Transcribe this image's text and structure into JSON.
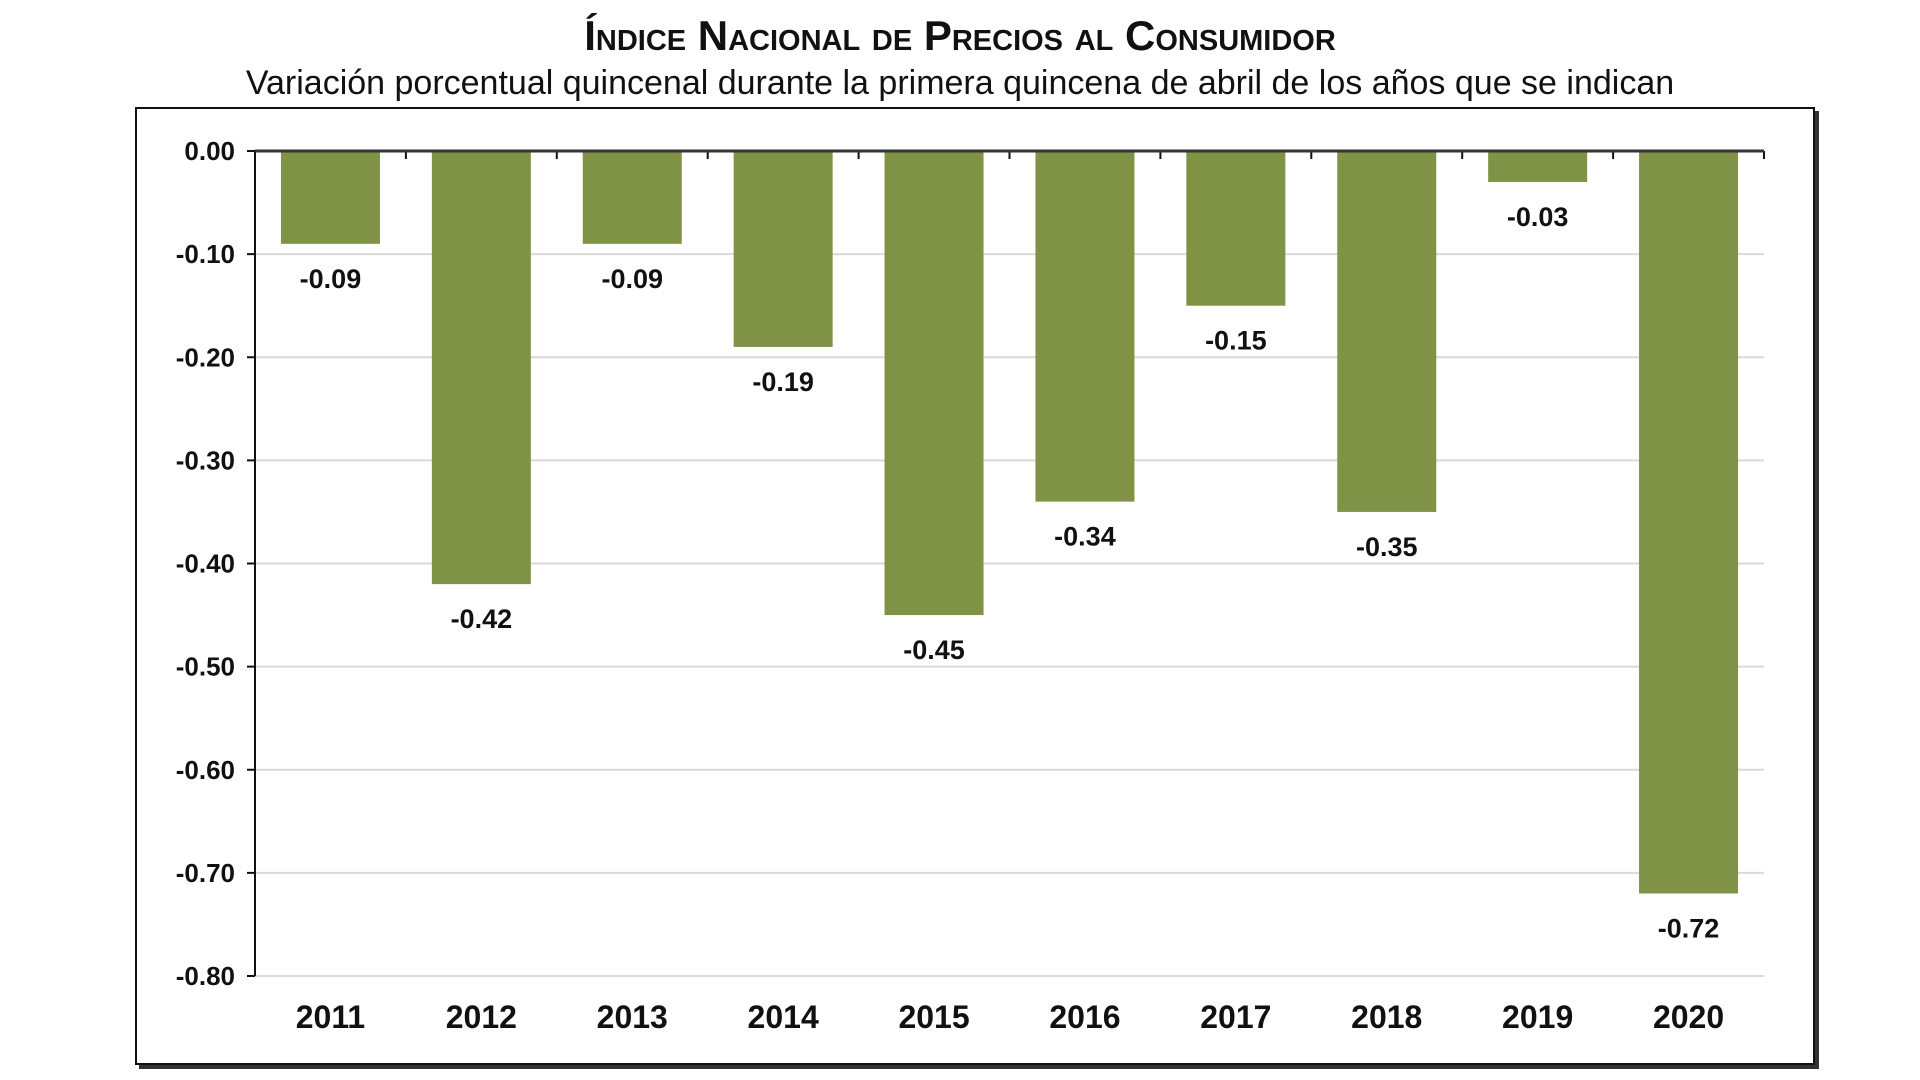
{
  "chart_data": {
    "type": "bar",
    "title": "Índice Nacional de Precios al Consumidor",
    "subtitle": "Variación porcentual quincenal durante la primera quincena de abril de los años que se indican",
    "categories": [
      "2011",
      "2012",
      "2013",
      "2014",
      "2015",
      "2016",
      "2017",
      "2018",
      "2019",
      "2020"
    ],
    "values": [
      -0.09,
      -0.42,
      -0.09,
      -0.19,
      -0.45,
      -0.34,
      -0.15,
      -0.35,
      -0.03,
      -0.72
    ],
    "data_labels": [
      "-0.09",
      "-0.42",
      "-0.09",
      "-0.19",
      "-0.45",
      "-0.34",
      "-0.15",
      "-0.35",
      "-0.03",
      "-0.72"
    ],
    "yticks": [
      "0.00",
      "-0.10",
      "-0.20",
      "-0.30",
      "-0.40",
      "-0.50",
      "-0.60",
      "-0.70",
      "-0.80"
    ],
    "ylim": [
      -0.8,
      0
    ],
    "xlabel": "",
    "ylabel": "",
    "grid": true,
    "bar_color": "#7f9246"
  }
}
